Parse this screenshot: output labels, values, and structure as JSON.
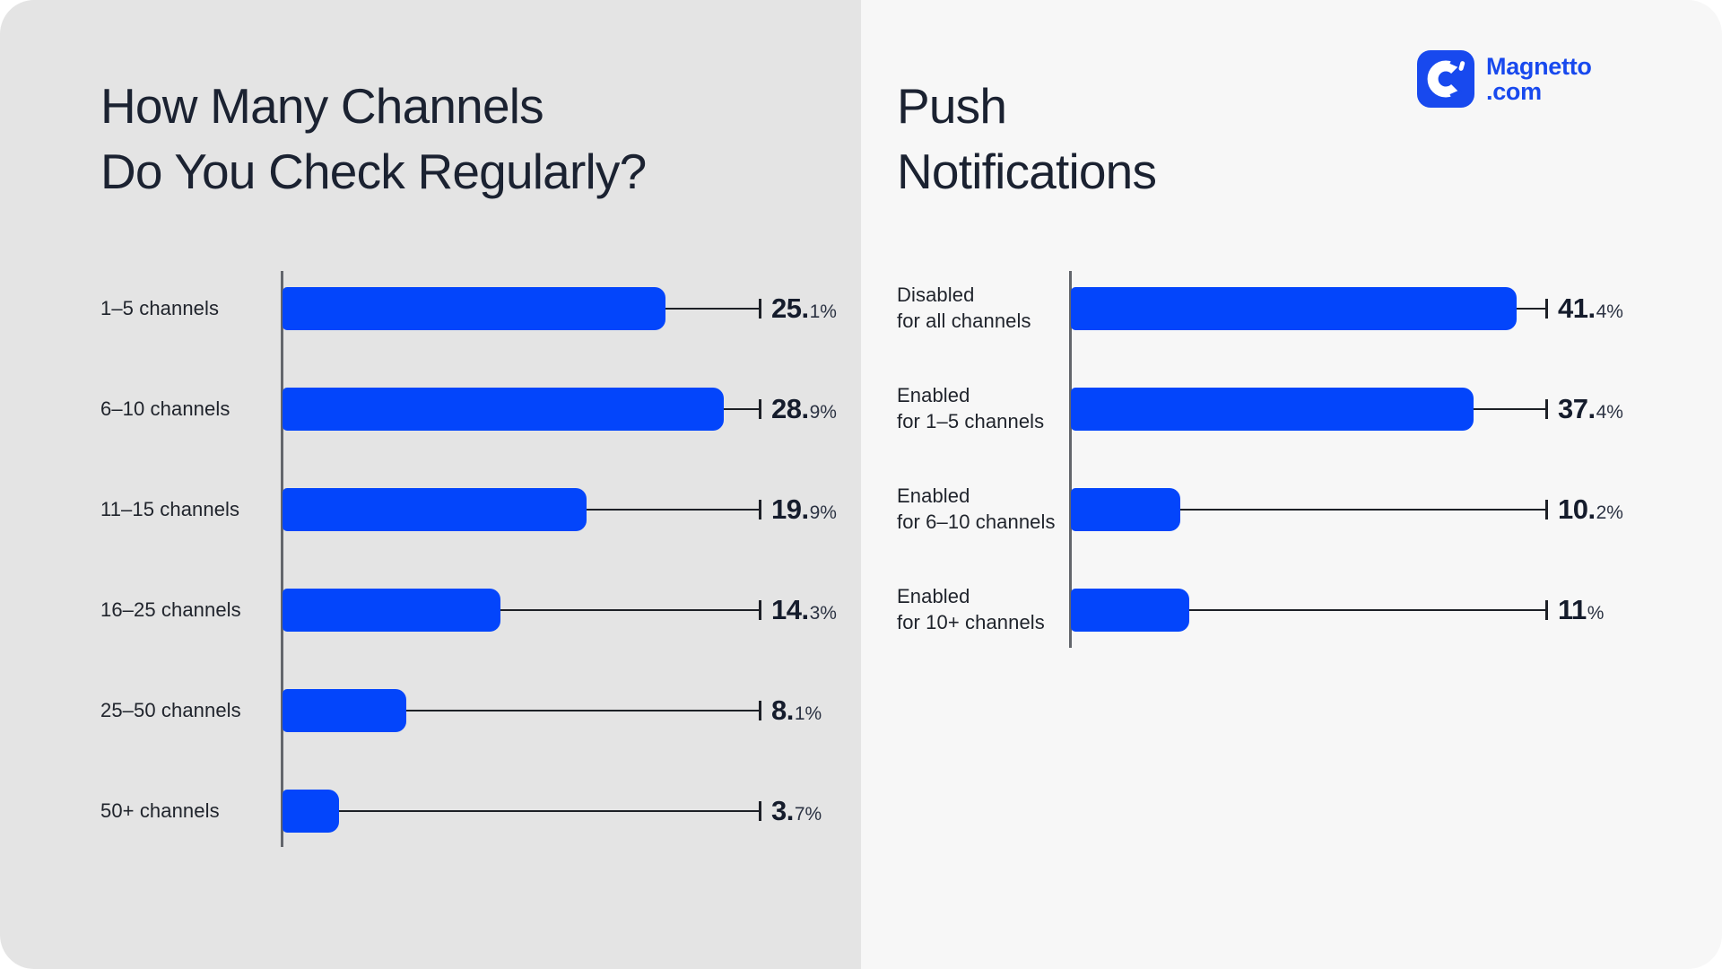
{
  "brand": {
    "logo_line1": "Magnetto",
    "logo_line2": ".com",
    "logo_color": "#1849ee"
  },
  "left_panel": {
    "title_lines": [
      "How Many Channels",
      "Do You Check Regularly?"
    ]
  },
  "right_panel": {
    "title_lines": [
      "Push",
      "Notifications"
    ]
  },
  "colors": {
    "bar_blue": "#0345fb",
    "left_panel_bg": "#e4e4e4",
    "right_panel_bg": "#f7f7f7",
    "title_navy": "#1b2231",
    "value_navy": "#151c2c",
    "leader_line": "#1d2026",
    "axis_gray": "#63666c",
    "page_bg": "#ffffff"
  },
  "chart_data": [
    {
      "type": "bar",
      "orientation": "horizontal",
      "title": "How Many Channels Do You Check Regularly?",
      "categories": [
        "1–5 channels",
        "6–10 channels",
        "11–15 channels",
        "16–25 channels",
        "25–50 channels",
        "50+ channels"
      ],
      "category_lines": [
        [
          "1–5 channels"
        ],
        [
          "6–10 channels"
        ],
        [
          "11–15 channels"
        ],
        [
          "16–25 channels"
        ],
        [
          "25–50 channels"
        ],
        [
          "50+ channels"
        ]
      ],
      "values": [
        25.1,
        28.9,
        19.9,
        14.3,
        8.1,
        3.7
      ],
      "unit": "%",
      "xlabel": "",
      "ylabel": "",
      "xlim": [
        0,
        31.5
      ],
      "grid": false,
      "legend": false,
      "bar_color": "#0345fb"
    },
    {
      "type": "bar",
      "orientation": "horizontal",
      "title": "Push Notifications",
      "categories": [
        "Disabled for all channels",
        "Enabled for 1–5 channels",
        "Enabled for 6–10 channels",
        "Enabled for 10+ channels"
      ],
      "category_lines": [
        [
          "Disabled",
          "for all channels"
        ],
        [
          "Enabled",
          "for 1–5 channels"
        ],
        [
          "Enabled",
          "for 6–10 channels"
        ],
        [
          "Enabled",
          "for 10+ channels"
        ]
      ],
      "values": [
        41.4,
        37.4,
        10.2,
        11
      ],
      "unit": "%",
      "xlabel": "",
      "ylabel": "",
      "xlim": [
        0,
        44.5
      ],
      "grid": false,
      "legend": false,
      "bar_color": "#0345fb"
    }
  ]
}
